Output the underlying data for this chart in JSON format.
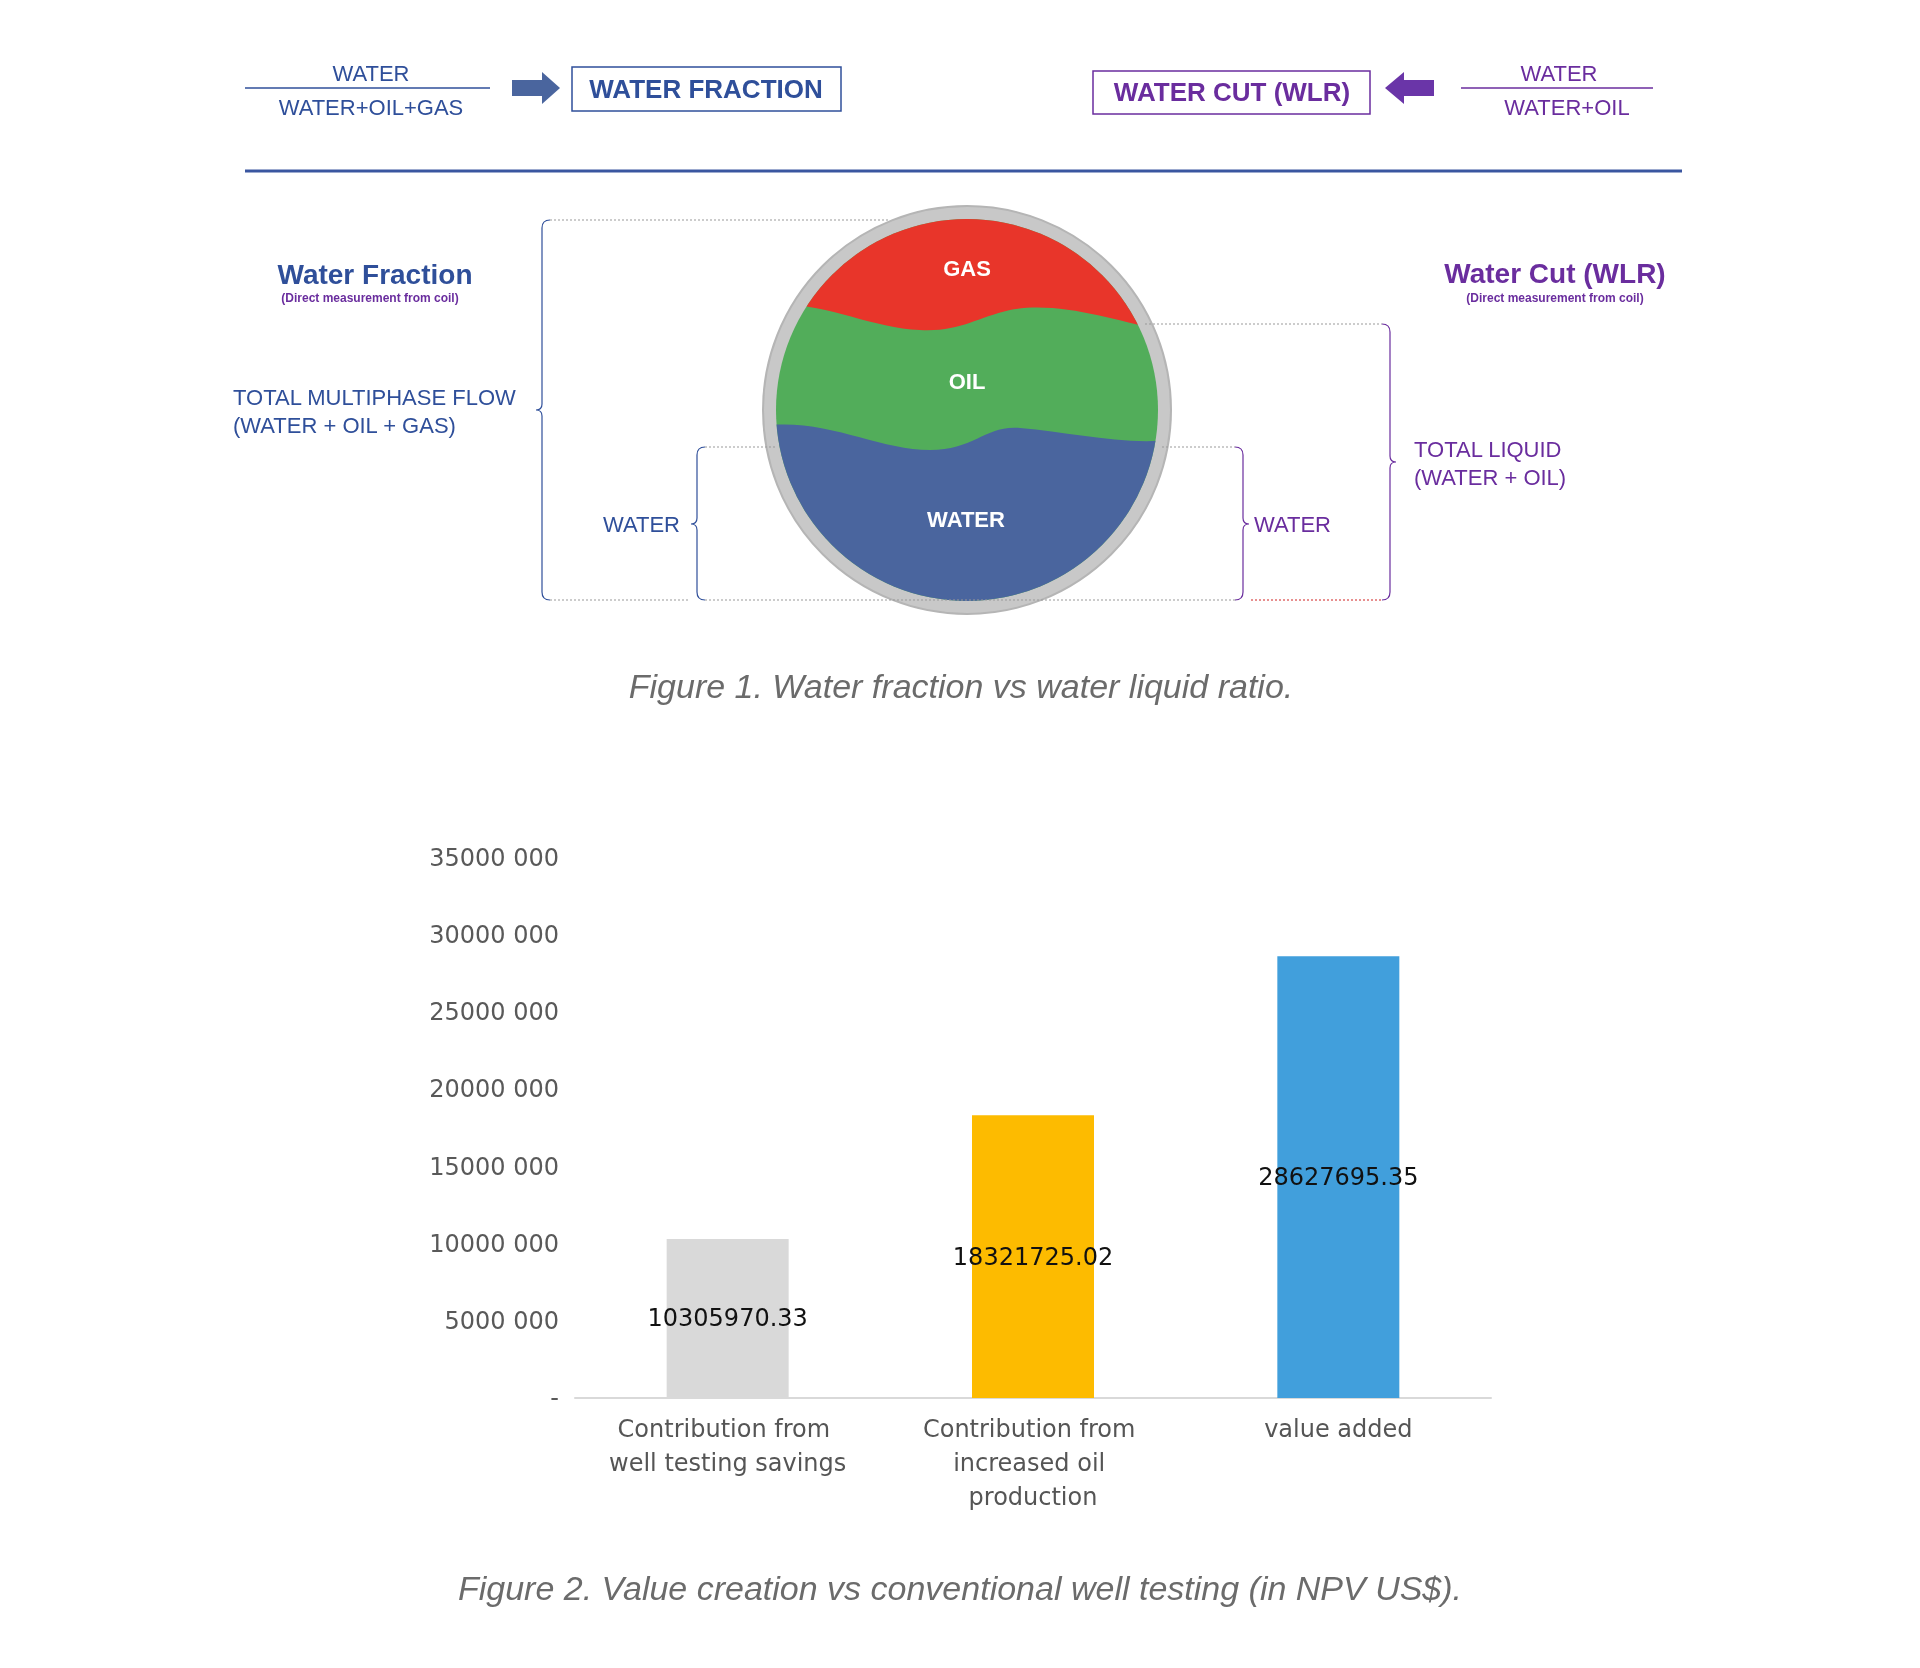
{
  "chart_data": [
    {
      "type": "other",
      "title": "Figure 1. Water fraction vs water liquid ratio.",
      "annotations": [
        "WATER",
        "WATER+OIL+GAS",
        "WATER FRACTION",
        "WATER CUT (WLR)",
        "WATER",
        "WATER+OIL",
        "Water Fraction",
        "(Direct measurement from coil)",
        "Water Cut (WLR)",
        "(Direct measurement from coil)",
        "TOTAL MULTIPHASE FLOW",
        "(WATER + OIL + GAS)",
        "WATER",
        "WATER",
        "TOTAL LIQUID",
        "(WATER + OIL)",
        "GAS",
        "OIL",
        "WATER"
      ]
    },
    {
      "type": "bar",
      "title": "Figure 2. Value creation vs conventional well testing (in NPV US$).",
      "categories": [
        "Contribution from well testing savings",
        "Contribution from increased oil production",
        "value added"
      ],
      "values": [
        10305970.33,
        18321725.02,
        28627695.35
      ],
      "colors": [
        "#d9d9d9",
        "#fdbb00",
        "#419fdc"
      ],
      "ylim": [
        0,
        35000000
      ],
      "yticks": [
        {
          "value": 0,
          "label": "-"
        },
        {
          "value": 5000000,
          "label": "5000 000"
        },
        {
          "value": 10000000,
          "label": "10000 000"
        },
        {
          "value": 15000000,
          "label": "15000 000"
        },
        {
          "value": 20000000,
          "label": "20000 000"
        },
        {
          "value": 25000000,
          "label": "25000 000"
        },
        {
          "value": 30000000,
          "label": "30000 000"
        },
        {
          "value": 35000000,
          "label": "35000 000"
        }
      ],
      "data_labels": true,
      "grid": false
    }
  ]
}
